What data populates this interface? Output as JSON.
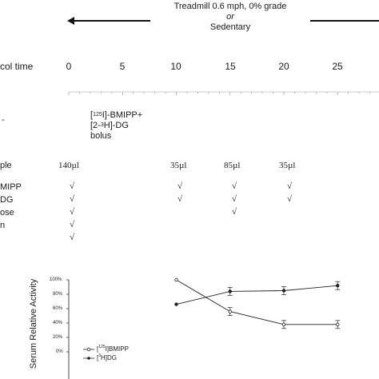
{
  "header": {
    "condition_line1": "Treadmill 0.6 mph, 0% grade",
    "condition_line2": "or",
    "condition_line3": "Sedentary"
  },
  "timeline": {
    "row_label": "col time",
    "ticks": [
      "0",
      "5",
      "10",
      "15",
      "20",
      "25"
    ]
  },
  "bolus": {
    "line1_pre": "[",
    "line1_sup": "125",
    "line1_post": "I]-BMIPP+",
    "line2_pre": "[2-",
    "line2_sup": "3",
    "line2_post": "H]-DG",
    "line3": "bolus",
    "left_cut": "-"
  },
  "sample": {
    "row_label": "ple",
    "volumes": [
      "140µl",
      "35µl",
      "85µl",
      "35µl"
    ]
  },
  "measures": {
    "labels": [
      "MIPP",
      "DG",
      "ose",
      "n"
    ],
    "checks": {
      "t0": [
        "√",
        "√",
        "√",
        "√",
        "√"
      ],
      "t10": [
        "√",
        "√"
      ],
      "t15": [
        "√",
        "√",
        "√"
      ],
      "t20": [
        "√",
        "√"
      ]
    }
  },
  "chart_data": {
    "type": "line",
    "ylabel": "Serum Relative Activity",
    "yticks": [
      "100%",
      "80%",
      "60%",
      "40%",
      "20%",
      "0%"
    ],
    "ylim": [
      0,
      100
    ],
    "series": [
      {
        "name": "BMIPP",
        "name_pre": "[",
        "name_sup": "125",
        "name_post": "I]BMIPP",
        "marker": "open-circle",
        "x": [
          10,
          15,
          20,
          25
        ],
        "y": [
          100,
          56,
          38,
          38
        ]
      },
      {
        "name": "DG",
        "name_pre": "[",
        "name_sup": "3",
        "name_post": "H]DG",
        "marker": "filled-circle",
        "x": [
          10,
          15,
          20,
          25
        ],
        "y": [
          66,
          84,
          85,
          92
        ]
      }
    ]
  }
}
